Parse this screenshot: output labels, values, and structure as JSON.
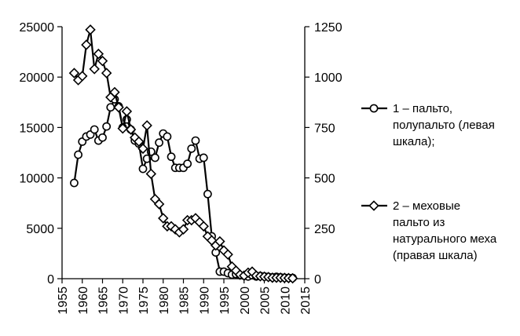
{
  "chart_data": {
    "type": "line",
    "x_ticks": [
      "1955",
      "1960",
      "1965",
      "1970",
      "1975",
      "1980",
      "1985",
      "1990",
      "1995",
      "2000",
      "2005",
      "2010",
      "2015"
    ],
    "y_left_ticks": [
      "0",
      "5000",
      "10000",
      "15000",
      "20000",
      "25000"
    ],
    "y_right_ticks": [
      "0",
      "250",
      "500",
      "750",
      "1000",
      "1250"
    ],
    "xlim": [
      1955,
      2015
    ],
    "ylim_left": [
      0,
      25000
    ],
    "ylim_right": [
      0,
      1250
    ],
    "grid": false,
    "legend_position": "right",
    "series": [
      {
        "name": "1 – пальто, полупальто (левая шкала);",
        "legend_lines": [
          "1 – пальто,",
          "полупальто (левая",
          "шкала);"
        ],
        "marker": "circle",
        "axis": "left",
        "x": [
          1958,
          1959,
          1960,
          1961,
          1962,
          1963,
          1964,
          1965,
          1966,
          1967,
          1968,
          1969,
          1970,
          1971,
          1972,
          1973,
          1974,
          1975,
          1976,
          1977,
          1978,
          1979,
          1980,
          1981,
          1982,
          1983,
          1984,
          1985,
          1986,
          1987,
          1988,
          1989,
          1990,
          1991,
          1992,
          1993,
          1994,
          1995,
          1996,
          1997,
          1998,
          1999,
          2000,
          2001,
          2002,
          2003,
          2004,
          2005,
          2006,
          2007,
          2008,
          2009,
          2010,
          2011,
          2012
        ],
        "values": [
          9500,
          12300,
          13600,
          14100,
          14300,
          14800,
          13700,
          14000,
          15100,
          17000,
          17800,
          17100,
          15000,
          15800,
          14800,
          13700,
          13400,
          10900,
          11900,
          12600,
          12000,
          13500,
          14400,
          14100,
          12100,
          11000,
          11000,
          11000,
          11400,
          12900,
          13700,
          11900,
          12000,
          8400,
          4200,
          2600,
          700,
          700,
          550,
          400,
          450,
          350,
          300,
          220,
          350,
          220,
          270,
          220,
          180,
          130,
          180,
          130,
          100,
          80,
          80
        ]
      },
      {
        "name": "2 – меховые пальто из натурального меха (правая шкала)",
        "legend_lines": [
          "2 – меховые",
          "пальто из",
          "натурального меха",
          "(правая шкала)"
        ],
        "marker": "diamond",
        "axis": "right",
        "x": [
          1958,
          1959,
          1960,
          1961,
          1962,
          1963,
          1964,
          1965,
          1966,
          1967,
          1968,
          1969,
          1970,
          1971,
          1972,
          1973,
          1974,
          1975,
          1976,
          1977,
          1978,
          1979,
          1980,
          1981,
          1982,
          1983,
          1984,
          1985,
          1986,
          1987,
          1988,
          1989,
          1990,
          1991,
          1992,
          1993,
          1994,
          1995,
          1996,
          1997,
          1998,
          1999,
          2000,
          2001,
          2002,
          2003,
          2004,
          2005,
          2006,
          2007,
          2008,
          2009,
          2010,
          2011,
          2012
        ],
        "values": [
          1020,
          985,
          1005,
          1160,
          1235,
          1040,
          1115,
          1080,
          1020,
          900,
          925,
          850,
          745,
          830,
          740,
          700,
          680,
          645,
          760,
          520,
          395,
          370,
          300,
          260,
          260,
          245,
          230,
          245,
          290,
          290,
          300,
          280,
          260,
          210,
          190,
          165,
          185,
          140,
          120,
          60,
          40,
          20,
          15,
          30,
          35,
          15,
          12,
          10,
          8,
          5,
          5,
          5,
          4,
          3,
          2
        ]
      }
    ]
  }
}
